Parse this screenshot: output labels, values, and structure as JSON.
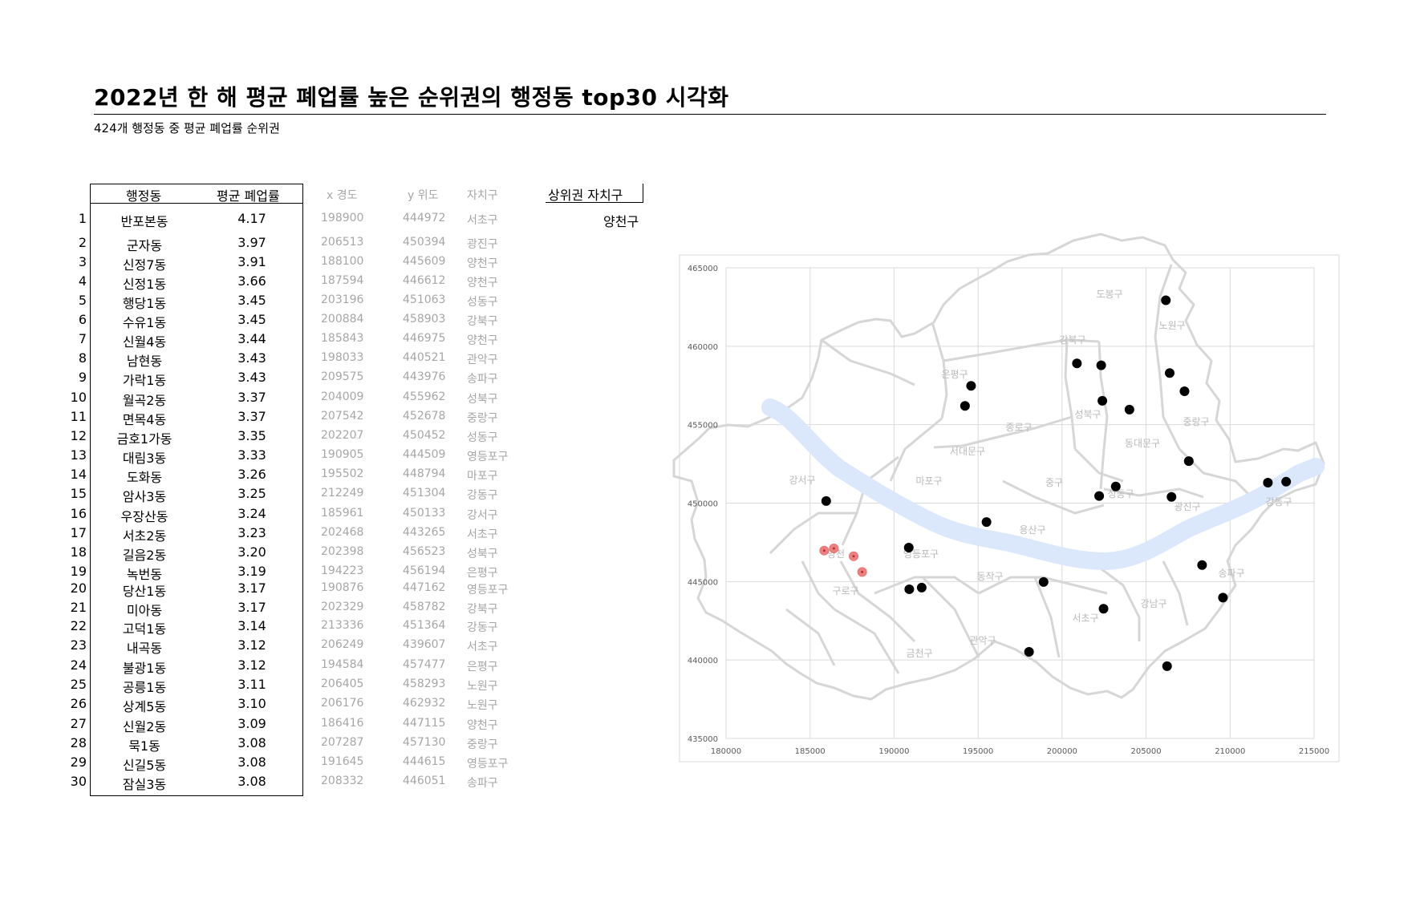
{
  "title": "2022년 한 해 평균 폐업률 높은 순위권의 행정동 top30 시각화",
  "subtitle": "424개 행정동 중 평균 폐업률 순위권",
  "table": {
    "headers": {
      "name": "행정동",
      "rate": "평균 폐업률",
      "lon": "x 경도",
      "lat": "y 위도",
      "gu": "자치구"
    },
    "rows": [
      {
        "rank": "1",
        "name": "반포본동",
        "rate": "4.17",
        "lon": "198900",
        "lat": "444972",
        "gu": "서초구"
      },
      {
        "rank": "2",
        "name": "군자동",
        "rate": "3.97",
        "lon": "206513",
        "lat": "450394",
        "gu": "광진구"
      },
      {
        "rank": "3",
        "name": "신정7동",
        "rate": "3.91",
        "lon": "188100",
        "lat": "445609",
        "gu": "양천구"
      },
      {
        "rank": "4",
        "name": "신정1동",
        "rate": "3.66",
        "lon": "187594",
        "lat": "446612",
        "gu": "양천구"
      },
      {
        "rank": "5",
        "name": "행당1동",
        "rate": "3.45",
        "lon": "203196",
        "lat": "451063",
        "gu": "성동구"
      },
      {
        "rank": "6",
        "name": "수유1동",
        "rate": "3.45",
        "lon": "200884",
        "lat": "458903",
        "gu": "강북구"
      },
      {
        "rank": "7",
        "name": "신월4동",
        "rate": "3.44",
        "lon": "185843",
        "lat": "446975",
        "gu": "양천구"
      },
      {
        "rank": "8",
        "name": "남현동",
        "rate": "3.43",
        "lon": "198033",
        "lat": "440521",
        "gu": "관악구"
      },
      {
        "rank": "9",
        "name": "가락1동",
        "rate": "3.43",
        "lon": "209575",
        "lat": "443976",
        "gu": "송파구"
      },
      {
        "rank": "10",
        "name": "월곡2동",
        "rate": "3.37",
        "lon": "204009",
        "lat": "455962",
        "gu": "성북구"
      },
      {
        "rank": "11",
        "name": "면목4동",
        "rate": "3.37",
        "lon": "207542",
        "lat": "452678",
        "gu": "중랑구"
      },
      {
        "rank": "12",
        "name": "금호1가동",
        "rate": "3.35",
        "lon": "202207",
        "lat": "450452",
        "gu": "성동구"
      },
      {
        "rank": "13",
        "name": "대림3동",
        "rate": "3.33",
        "lon": "190905",
        "lat": "444509",
        "gu": "영등포구"
      },
      {
        "rank": "14",
        "name": "도화동",
        "rate": "3.26",
        "lon": "195502",
        "lat": "448794",
        "gu": "마포구"
      },
      {
        "rank": "15",
        "name": "암사3동",
        "rate": "3.25",
        "lon": "212249",
        "lat": "451304",
        "gu": "강동구"
      },
      {
        "rank": "16",
        "name": "우장산동",
        "rate": "3.24",
        "lon": "185961",
        "lat": "450133",
        "gu": "강서구"
      },
      {
        "rank": "17",
        "name": "서초2동",
        "rate": "3.23",
        "lon": "202468",
        "lat": "443265",
        "gu": "서초구"
      },
      {
        "rank": "18",
        "name": "길음2동",
        "rate": "3.20",
        "lon": "202398",
        "lat": "456523",
        "gu": "성북구"
      },
      {
        "rank": "19",
        "name": "녹번동",
        "rate": "3.19",
        "lon": "194223",
        "lat": "456194",
        "gu": "은평구"
      },
      {
        "rank": "20",
        "name": "당산1동",
        "rate": "3.17",
        "lon": "190876",
        "lat": "447162",
        "gu": "영등포구"
      },
      {
        "rank": "21",
        "name": "미아동",
        "rate": "3.17",
        "lon": "202329",
        "lat": "458782",
        "gu": "강북구"
      },
      {
        "rank": "22",
        "name": "고덕1동",
        "rate": "3.14",
        "lon": "213336",
        "lat": "451364",
        "gu": "강동구"
      },
      {
        "rank": "23",
        "name": "내곡동",
        "rate": "3.12",
        "lon": "206249",
        "lat": "439607",
        "gu": "서초구"
      },
      {
        "rank": "24",
        "name": "불광1동",
        "rate": "3.12",
        "lon": "194584",
        "lat": "457477",
        "gu": "은평구"
      },
      {
        "rank": "25",
        "name": "공릉1동",
        "rate": "3.11",
        "lon": "206405",
        "lat": "458293",
        "gu": "노원구"
      },
      {
        "rank": "26",
        "name": "상계5동",
        "rate": "3.10",
        "lon": "206176",
        "lat": "462932",
        "gu": "노원구"
      },
      {
        "rank": "27",
        "name": "신월2동",
        "rate": "3.09",
        "lon": "186416",
        "lat": "447115",
        "gu": "양천구"
      },
      {
        "rank": "28",
        "name": "묵1동",
        "rate": "3.08",
        "lon": "207287",
        "lat": "457130",
        "gu": "중랑구"
      },
      {
        "rank": "29",
        "name": "신길5동",
        "rate": "3.08",
        "lon": "191645",
        "lat": "444615",
        "gu": "영등포구"
      },
      {
        "rank": "30",
        "name": "잠실3동",
        "rate": "3.08",
        "lon": "208332",
        "lat": "446051",
        "gu": "송파구"
      }
    ]
  },
  "top_district": {
    "header": "상위권 자치구",
    "value": "양천구"
  },
  "map_labels": {
    "dobong": "도봉구",
    "nowon": "노원구",
    "gangbuk": "강북구",
    "eunpyeong": "은평구",
    "seongbuk": "성북구",
    "jongno": "종로구",
    "jungnang": "중랑구",
    "seodaemun": "서대문구",
    "dongdaemun": "동대문구",
    "gangseo": "강서구",
    "mapo": "마포구",
    "jung": "중구",
    "seongdong": "성동구",
    "gwangjin": "광진구",
    "gangdong": "강동구",
    "yongsan": "용산구",
    "yangcheon": "양천",
    "yeongdeungpo": "영등포구",
    "dongjak": "동작구",
    "songpa": "송파구",
    "guro": "구로구",
    "gangnam": "강남구",
    "seocho": "서초구",
    "geumcheon": "금천구",
    "gwanak": "관악구"
  },
  "chart_data": {
    "type": "scatter",
    "xlim": [
      180000,
      215000
    ],
    "ylim": [
      435000,
      465000
    ],
    "xticks": [
      "180000",
      "185000",
      "190000",
      "195000",
      "200000",
      "205000",
      "210000",
      "215000"
    ],
    "yticks": [
      "435000",
      "440000",
      "445000",
      "450000",
      "455000",
      "460000",
      "465000"
    ],
    "grid": true,
    "highlight_color": "#f08080",
    "marker_color": "#000000",
    "highlight_district": "양천구"
  }
}
